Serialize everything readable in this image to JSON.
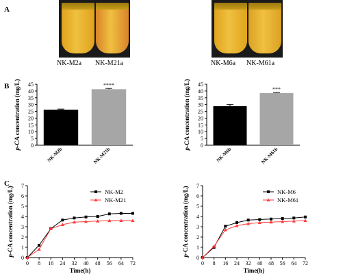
{
  "panels": {
    "a": "A",
    "b": "B",
    "c": "C"
  },
  "tubes": [
    {
      "label": "NK-M2a",
      "color": "#e0a21c"
    },
    {
      "label": "NK-M21a",
      "color": "#d8842a"
    },
    {
      "label": "NK-M6a",
      "color": "#dfa41e"
    },
    {
      "label": "NK-M61a",
      "color": "#dba225"
    }
  ],
  "chart_data": [
    {
      "type": "bar",
      "categories": [
        "NK-M2b",
        "NK-M21b"
      ],
      "values": [
        26.2,
        41.3
      ],
      "errors": [
        0.5,
        0.6
      ],
      "colors": [
        "#000000",
        "#a6a6a6"
      ],
      "significance": [
        "",
        "****"
      ],
      "ylabel": "p-CA concentration (mg/L)",
      "yticks": [
        0,
        5,
        10,
        15,
        20,
        25,
        30,
        35,
        40,
        45
      ],
      "ylim": [
        0,
        45
      ]
    },
    {
      "type": "bar",
      "categories": [
        "NK-M6b",
        "NK-M61b"
      ],
      "values": [
        28.8,
        38.5
      ],
      "errors": [
        1.2,
        0.5
      ],
      "colors": [
        "#000000",
        "#a6a6a6"
      ],
      "significance": [
        "",
        "***"
      ],
      "ylabel": "p-CA concentration (mg/L)",
      "yticks": [
        0,
        5,
        10,
        15,
        20,
        25,
        30,
        35,
        40,
        45
      ],
      "ylim": [
        0,
        45
      ]
    },
    {
      "type": "line",
      "x": [
        0,
        8,
        16,
        24,
        32,
        40,
        48,
        56,
        64,
        72
      ],
      "xticks": [
        0,
        8,
        16,
        24,
        32,
        40,
        48,
        56,
        64,
        72
      ],
      "xlabel": "Time(h)",
      "ylabel": "p-CA concentration (mg/L)",
      "yticks": [
        0,
        1,
        2,
        3,
        4,
        5,
        6,
        7
      ],
      "ylim": [
        0,
        7
      ],
      "xlim": [
        0,
        72
      ],
      "legend": "top-right",
      "series": [
        {
          "name": "NK-M2",
          "color": "#000000",
          "marker": "square",
          "values": [
            0,
            1.2,
            2.8,
            3.65,
            3.85,
            3.95,
            4.0,
            4.25,
            4.3,
            4.3
          ]
        },
        {
          "name": "NK-M21",
          "color": "#ff3b3b",
          "marker": "triangle",
          "values": [
            0,
            0.8,
            2.8,
            3.2,
            3.45,
            3.5,
            3.55,
            3.6,
            3.6,
            3.6
          ]
        }
      ]
    },
    {
      "type": "line",
      "x": [
        0,
        8,
        16,
        24,
        32,
        40,
        48,
        56,
        64,
        72
      ],
      "xticks": [
        0,
        8,
        16,
        24,
        32,
        40,
        48,
        56,
        64,
        72
      ],
      "xlabel": "Time(h)",
      "ylabel": "p-CA concentration (mg/L)",
      "yticks": [
        0,
        1,
        2,
        3,
        4,
        5,
        6,
        7
      ],
      "ylim": [
        0,
        7
      ],
      "xlim": [
        0,
        72
      ],
      "legend": "top-right",
      "series": [
        {
          "name": "NK-M6",
          "color": "#000000",
          "marker": "square",
          "values": [
            0,
            1.0,
            3.05,
            3.4,
            3.65,
            3.7,
            3.75,
            3.8,
            3.85,
            3.95
          ]
        },
        {
          "name": "NK-M61",
          "color": "#ff3b3b",
          "marker": "triangle",
          "values": [
            0,
            1.1,
            2.7,
            3.1,
            3.3,
            3.4,
            3.45,
            3.5,
            3.55,
            3.6
          ]
        }
      ]
    }
  ]
}
